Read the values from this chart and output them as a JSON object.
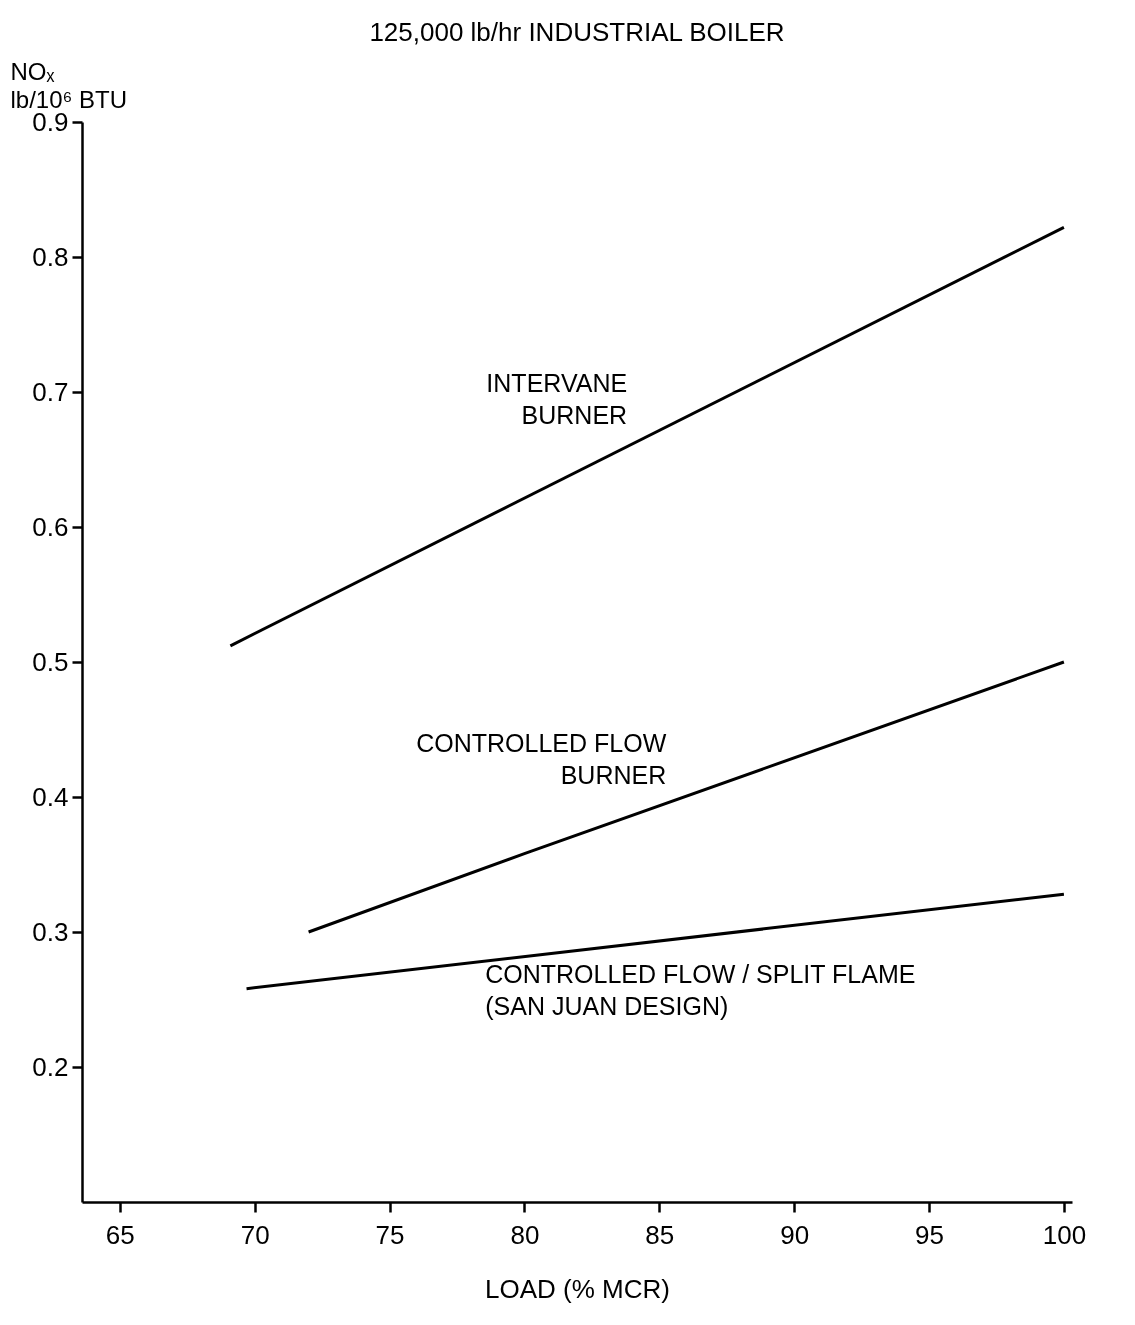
{
  "chart_data": {
    "type": "line",
    "title": "125,000 lb/hr INDUSTRIAL BOILER",
    "xlabel": "LOAD (% MCR)",
    "ylabel": "NOₓ\nlb/10⁶ BTU",
    "xlim": [
      63.6,
      100.3
    ],
    "xticks": [
      65,
      70,
      75,
      80,
      85,
      90,
      95,
      100
    ],
    "ylim": [
      0.1,
      0.9
    ],
    "yticks": [
      0.2,
      0.3,
      0.4,
      0.5,
      0.6,
      0.7,
      0.8,
      0.9
    ],
    "grid": false,
    "legend": false,
    "series": [
      {
        "name": "INTERVANE\nBURNER",
        "color": "#000000",
        "x": [
          69.1,
          100
        ],
        "values": [
          0.512,
          0.822
        ]
      },
      {
        "name": "CONTROLLED  FLOW\nBURNER",
        "color": "#000000",
        "x": [
          72.0,
          80,
          100
        ],
        "values": [
          0.3,
          0.358,
          0.5
        ]
      },
      {
        "name": "CONTROLLED  FLOW / SPLIT  FLAME\n(SAN  JUAN  DESIGN)",
        "color": "#000000",
        "x": [
          69.7,
          100
        ],
        "values": [
          0.258,
          0.328
        ]
      }
    ]
  }
}
